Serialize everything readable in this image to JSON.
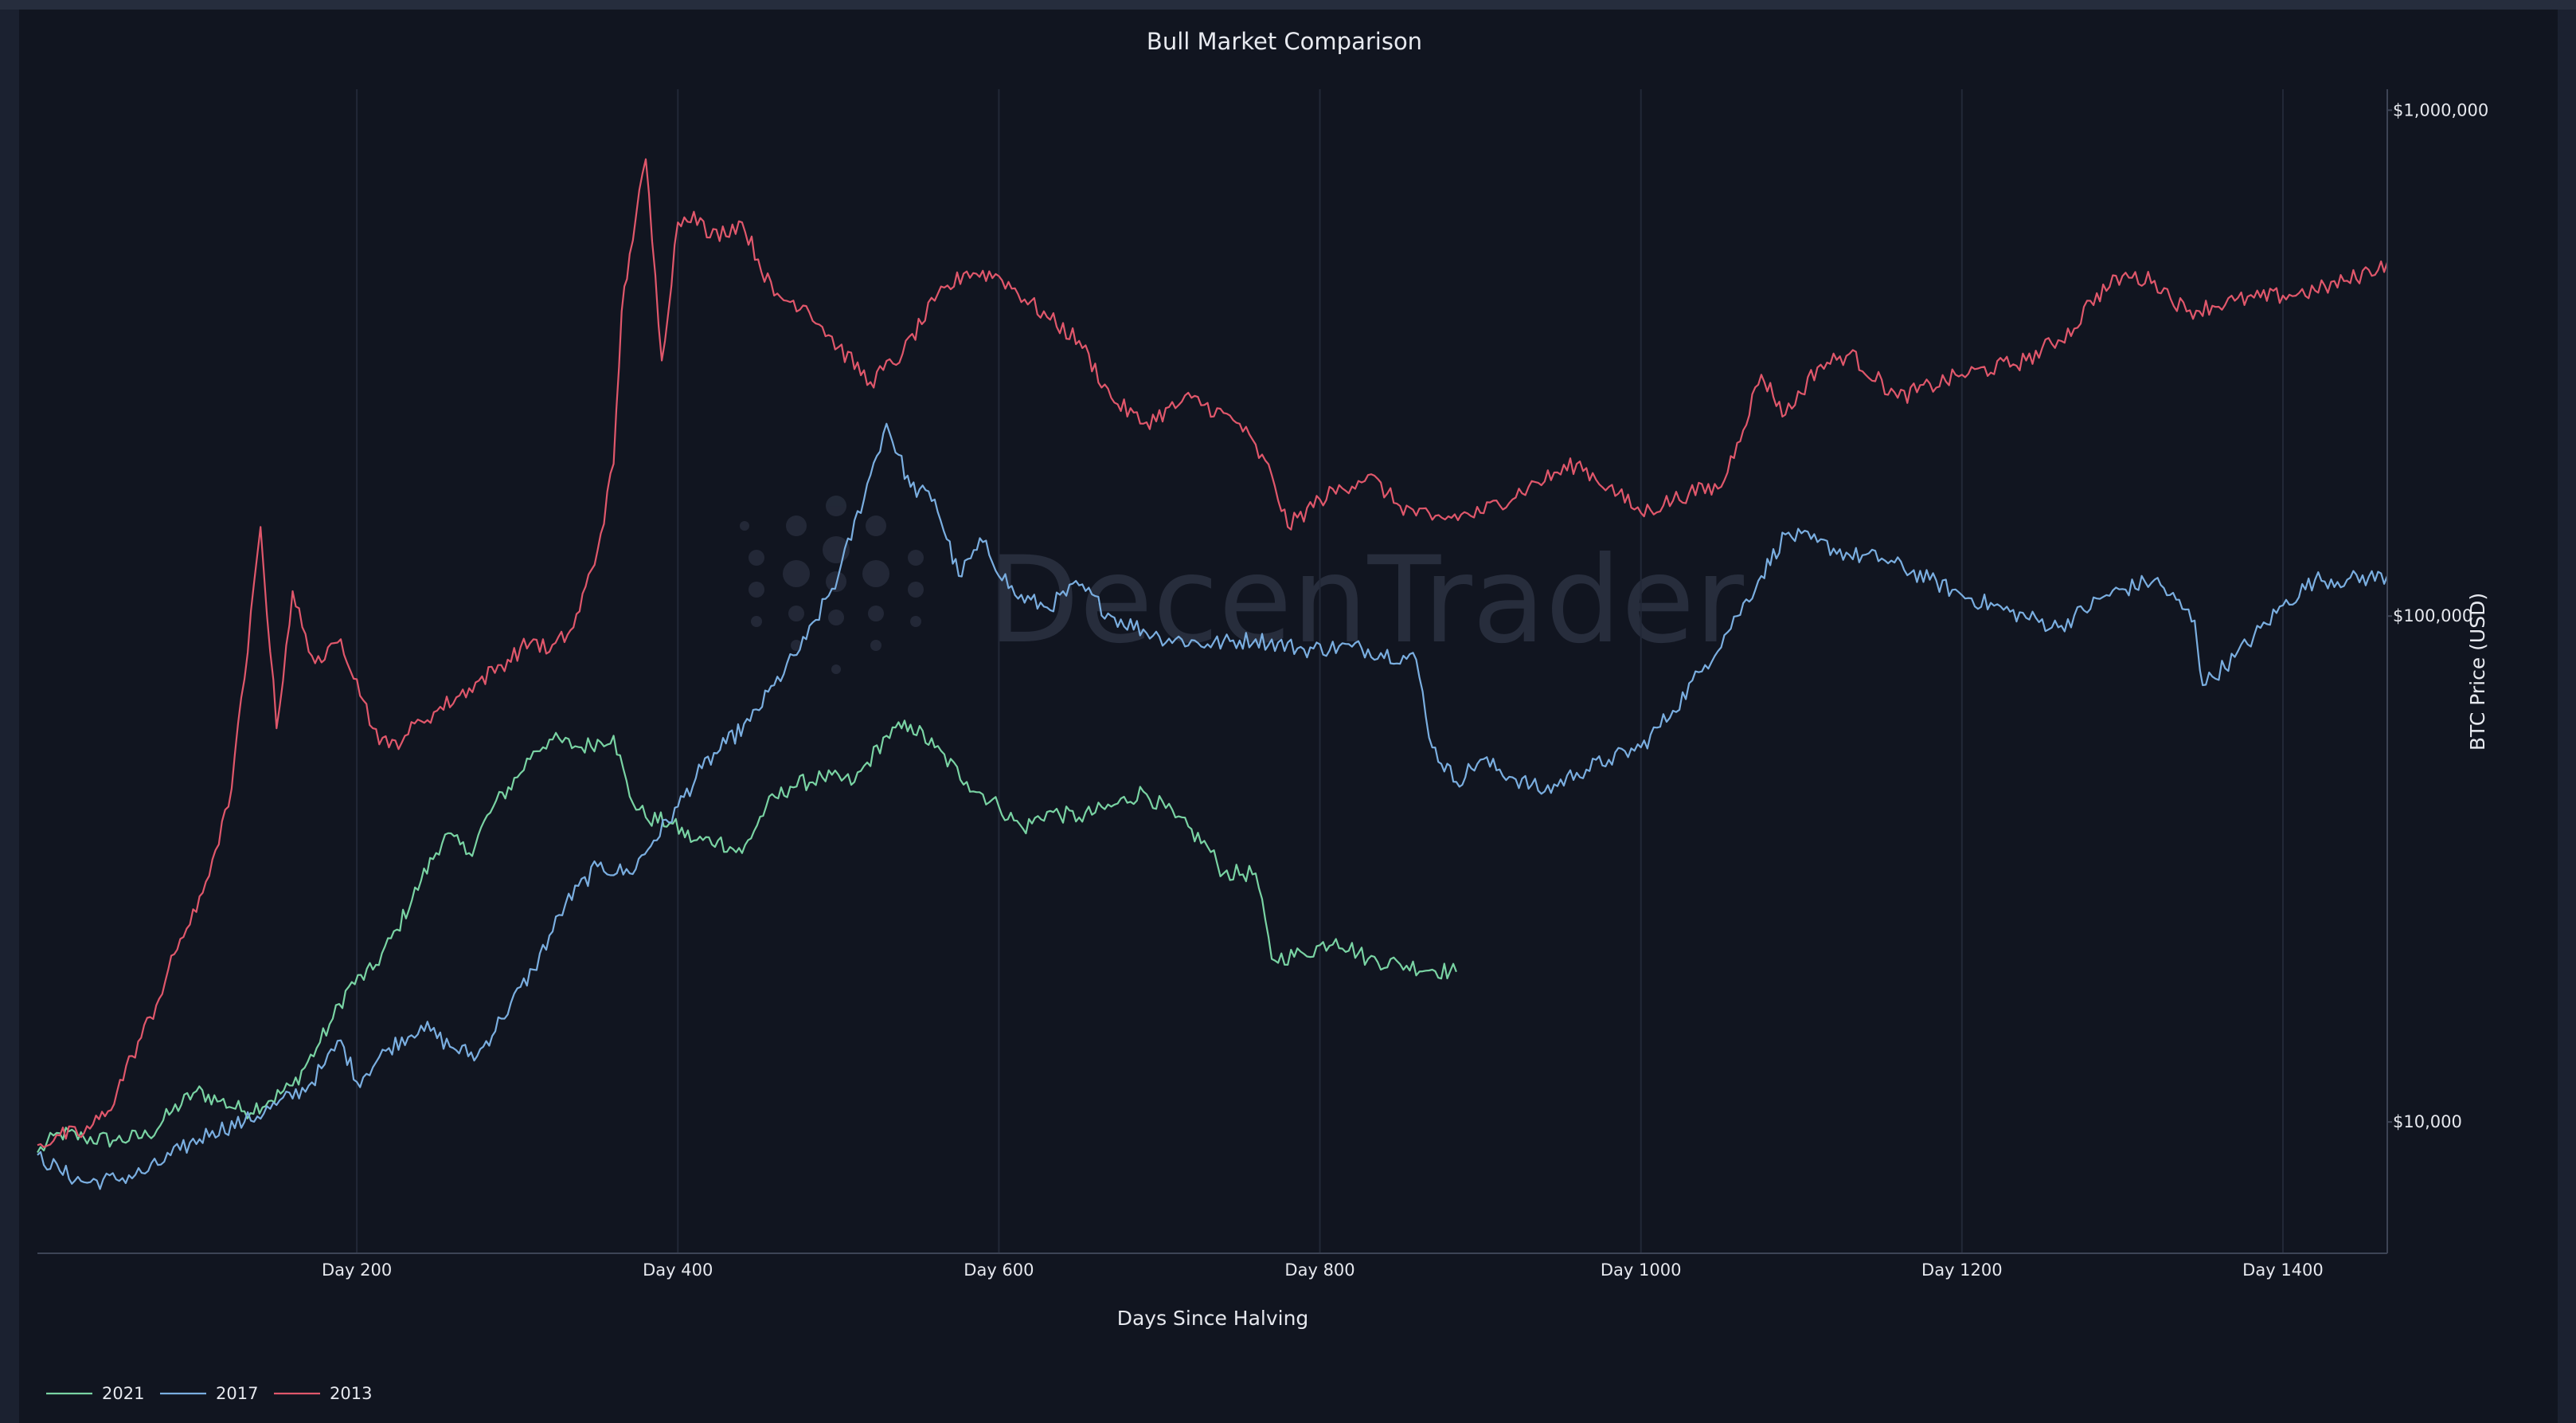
{
  "chart_data": {
    "type": "line",
    "title": "Bull Market Comparison",
    "xlabel": "Days Since Halving",
    "ylabel": "BTC Price (USD)",
    "y_scale": "log",
    "xlim": [
      1,
      1465
    ],
    "ylim": [
      5500,
      1100000
    ],
    "x_ticks": [
      200,
      400,
      600,
      800,
      1000,
      1200,
      1400
    ],
    "x_tick_labels": [
      "Day 200",
      "Day 400",
      "Day 600",
      "Day 800",
      "Day 1000",
      "Day 1200",
      "Day 1400"
    ],
    "y_ticks": [
      10000,
      100000,
      1000000
    ],
    "y_tick_labels": [
      "$10,000",
      "$100,000",
      "$1,000,000"
    ],
    "grid": "vertical",
    "legend_position": "bottom-left",
    "watermark": "DecenTrader",
    "series": [
      {
        "name": "2021",
        "color": "#79d3a3",
        "x": [
          1,
          15,
          30,
          50,
          70,
          85,
          100,
          115,
          130,
          145,
          160,
          175,
          185,
          195,
          210,
          225,
          240,
          255,
          270,
          285,
          300,
          310,
          320,
          340,
          360,
          370,
          380,
          395,
          410,
          425,
          440,
          455,
          470,
          490,
          510,
          530,
          545,
          560,
          580,
          600,
          615,
          630,
          650,
          670,
          690,
          710,
          730,
          740,
          760,
          770,
          790,
          810,
          830,
          850,
          870,
          885
        ],
        "values": [
          8700,
          9500,
          9300,
          9200,
          9400,
          10500,
          11500,
          11000,
          10500,
          11000,
          11800,
          14000,
          16000,
          18500,
          20000,
          24000,
          30000,
          37000,
          34000,
          42000,
          48000,
          54000,
          57000,
          55000,
          58000,
          44000,
          40000,
          39000,
          36000,
          36000,
          34000,
          42000,
          46000,
          48000,
          47000,
          58000,
          61000,
          55000,
          47000,
          42000,
          38000,
          41000,
          40000,
          42000,
          45000,
          40000,
          35000,
          31000,
          31000,
          21000,
          21500,
          23000,
          21000,
          20500,
          20000,
          19800
        ]
      },
      {
        "name": "2017",
        "color": "#7aaee0",
        "x": [
          1,
          15,
          30,
          50,
          70,
          90,
          110,
          130,
          150,
          170,
          180,
          190,
          200,
          220,
          240,
          260,
          275,
          290,
          310,
          330,
          350,
          370,
          385,
          400,
          415,
          430,
          445,
          460,
          480,
          500,
          520,
          530,
          545,
          560,
          575,
          590,
          610,
          630,
          650,
          670,
          700,
          730,
          760,
          790,
          820,
          860,
          870,
          885,
          900,
          920,
          940,
          960,
          980,
          1000,
          1020,
          1040,
          1060,
          1075,
          1090,
          1110,
          1130,
          1150,
          1180,
          1200,
          1230,
          1260,
          1290,
          1320,
          1345,
          1350,
          1370,
          1400,
          1420,
          1440,
          1465
        ],
        "values": [
          8600,
          8000,
          7600,
          7700,
          8000,
          8800,
          9600,
          10000,
          10800,
          11800,
          13000,
          14500,
          12000,
          14000,
          15500,
          14000,
          13500,
          16000,
          20000,
          27000,
          32000,
          31000,
          36000,
          42000,
          50000,
          56000,
          62000,
          73000,
          90000,
          120000,
          190000,
          240000,
          180000,
          170000,
          120000,
          140000,
          110000,
          104000,
          115000,
          100000,
          91000,
          88000,
          90000,
          86000,
          87000,
          82000,
          55000,
          47000,
          52000,
          48000,
          45000,
          49000,
          52000,
          55000,
          65000,
          80000,
          100000,
          120000,
          145000,
          140000,
          132000,
          130000,
          118000,
          110000,
          102000,
          95000,
          110000,
          118000,
          98000,
          73000,
          83000,
          105000,
          118000,
          118000,
          120000
        ]
      },
      {
        "name": "2013",
        "color": "#e0576b",
        "x": [
          1,
          15,
          30,
          45,
          60,
          75,
          90,
          100,
          110,
          120,
          130,
          140,
          150,
          160,
          170,
          180,
          190,
          200,
          210,
          220,
          230,
          240,
          250,
          270,
          290,
          310,
          320,
          335,
          350,
          360,
          365,
          370,
          380,
          390,
          400,
          410,
          420,
          440,
          460,
          480,
          500,
          520,
          540,
          560,
          580,
          600,
          630,
          650,
          670,
          690,
          720,
          750,
          770,
          780,
          800,
          830,
          850,
          870,
          900,
          930,
          960,
          980,
          1000,
          1030,
          1050,
          1060,
          1075,
          1090,
          1110,
          1130,
          1160,
          1200,
          1240,
          1270,
          1280,
          1300,
          1320,
          1340,
          1370,
          1400,
          1420,
          1440,
          1465
        ],
        "values": [
          9000,
          9400,
          9500,
          10500,
          13500,
          17000,
          23000,
          26000,
          33000,
          42000,
          75000,
          150000,
          60000,
          112000,
          85000,
          82000,
          90000,
          75000,
          60000,
          55000,
          58000,
          62000,
          65000,
          72000,
          80000,
          90000,
          85000,
          95000,
          135000,
          200000,
          400000,
          520000,
          800000,
          320000,
          600000,
          630000,
          560000,
          600000,
          430000,
          410000,
          340000,
          290000,
          330000,
          420000,
          480000,
          470000,
          390000,
          350000,
          270000,
          240000,
          270000,
          240000,
          190000,
          150000,
          170000,
          190000,
          165000,
          155000,
          160000,
          180000,
          200000,
          180000,
          160000,
          175000,
          180000,
          220000,
          300000,
          250000,
          310000,
          330000,
          270000,
          300000,
          320000,
          370000,
          420000,
          470000,
          460000,
          400000,
          420000,
          430000,
          440000,
          460000,
          500000
        ]
      }
    ]
  }
}
